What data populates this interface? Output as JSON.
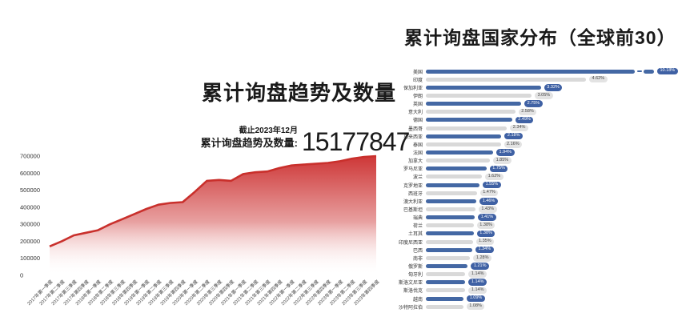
{
  "page": {
    "background": "#ffffff"
  },
  "left_panel": {
    "title": "累计询盘趋势及数量",
    "asof": "截止2023年12月",
    "metric_label": "累计询盘趋势及数量:",
    "metric_value": "15177847"
  },
  "right_panel": {
    "title": "累计询盘国家分布（全球前30）"
  },
  "chart_data": [
    {
      "type": "area",
      "title": "累计询盘趋势及数量",
      "x": [
        "2017年第一季度",
        "2017年第二季度",
        "2017年第三季度",
        "2017年第四季度",
        "2018年第一季度",
        "2018年第二季度",
        "2018年第三季度",
        "2018年第四季度",
        "2019年第一季度",
        "2019年第二季度",
        "2019年第三季度",
        "2019年第四季度",
        "2020年第一季度",
        "2020年第二季度",
        "2020年第三季度",
        "2020年第四季度",
        "2021年第一季度",
        "2021年第二季度",
        "2021年第三季度",
        "2021年第四季度",
        "2022年第一季度",
        "2022年第二季度",
        "2022年第三季度",
        "2022年第四季度",
        "2023年第一季度",
        "2023年第二季度",
        "2023年第三季度",
        "2023年第四季度"
      ],
      "values": [
        170000,
        200000,
        235000,
        250000,
        265000,
        300000,
        330000,
        360000,
        390000,
        415000,
        425000,
        430000,
        490000,
        555000,
        560000,
        555000,
        595000,
        605000,
        610000,
        630000,
        645000,
        650000,
        655000,
        660000,
        670000,
        685000,
        695000,
        700000
      ],
      "ylim": [
        0,
        700000
      ],
      "yticks": [
        0,
        100000,
        200000,
        300000,
        400000,
        500000,
        600000,
        700000
      ],
      "ytick_labels": [
        "0",
        "100000",
        "200000",
        "300000",
        "400000",
        "500000",
        "600000",
        "700000"
      ],
      "xlabel": "",
      "ylabel": "",
      "grid": false,
      "legend": "none",
      "line_color": "#c9302c",
      "fill_top_color": "#cb2c2c",
      "fill_bottom_color": "#ffffff"
    },
    {
      "type": "bar",
      "orientation": "horizontal",
      "title": "累计询盘国家分布（全球前30）",
      "categories": [
        "美国",
        "印度",
        "保加利亚",
        "伊朗",
        "英国",
        "意大利",
        "德国",
        "墨西哥",
        "马来西亚",
        "泰国",
        "法国",
        "加拿大",
        "罗马尼亚",
        "波兰",
        "克罗地亚",
        "西班牙",
        "澳大利亚",
        "巴基斯坦",
        "瑞典",
        "荷兰",
        "土耳其",
        "印度尼西亚",
        "巴西",
        "南非",
        "俄罗斯",
        "匈牙利",
        "斯洛文尼亚",
        "斯洛伐克",
        "越南",
        "沙特阿拉伯"
      ],
      "values": [
        10.18,
        4.62,
        3.32,
        3.05,
        2.75,
        2.58,
        2.49,
        2.34,
        2.18,
        2.16,
        1.94,
        1.85,
        1.75,
        1.62,
        1.55,
        1.47,
        1.46,
        1.43,
        1.41,
        1.38,
        1.38,
        1.35,
        1.34,
        1.28,
        1.21,
        1.14,
        1.14,
        1.14,
        1.09,
        1.08
      ],
      "value_labels": [
        "10.18%",
        "4.62%",
        "3.32%",
        "3.05%",
        "2.75%",
        "2.58%",
        "2.49%",
        "2.34%",
        "2.18%",
        "2.16%",
        "1.94%",
        "1.85%",
        "1.75%",
        "1.62%",
        "1.55%",
        "1.47%",
        "1.46%",
        "1.43%",
        "1.41%",
        "1.38%",
        "1.38%",
        "1.35%",
        "1.34%",
        "1.28%",
        "1.21%",
        "1.14%",
        "1.14%",
        "1.14%",
        "1.09%",
        "1.08%"
      ],
      "first_bar_truncated": true,
      "bar_color_primary": "#4468a4",
      "bar_color_alt": "#d9d9d9",
      "badge_color_primary": "#3f61a4",
      "badge_color_alt": "#e3e3e3",
      "legend": "none",
      "grid": false
    }
  ]
}
